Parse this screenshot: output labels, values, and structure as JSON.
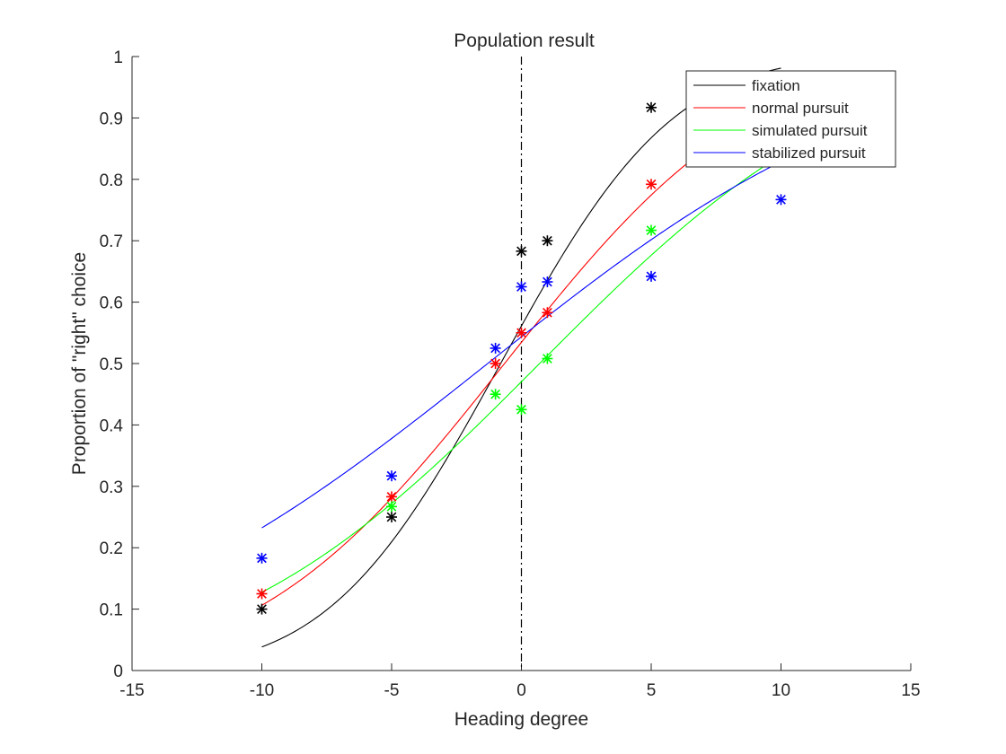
{
  "chart_data": {
    "type": "line",
    "title": "Population result",
    "xlabel": "Heading degree",
    "ylabel": "Proportion of \"right\" choice",
    "xlim": [
      -15,
      15
    ],
    "ylim": [
      0,
      1
    ],
    "xticks": [
      -15,
      -10,
      -5,
      0,
      5,
      10,
      15
    ],
    "xtick_labels": [
      "-15",
      "-10",
      "-5",
      "0",
      "5",
      "10",
      "15"
    ],
    "yticks": [
      0,
      0.1,
      0.2,
      0.3,
      0.4,
      0.5,
      0.6,
      0.7,
      0.8,
      0.9,
      1
    ],
    "ytick_labels": [
      "0",
      "0.1",
      "0.2",
      "0.3",
      "0.4",
      "0.5",
      "0.6",
      "0.7",
      "0.8",
      "0.9",
      "1"
    ],
    "grid": false,
    "legend_location": "top-right",
    "reference_line": {
      "x": 0,
      "style": "dash-dot",
      "color": "#000000"
    },
    "series": [
      {
        "name": "fixation",
        "color": "#000000",
        "points": {
          "x": [
            -10,
            -5,
            0,
            1,
            5
          ],
          "y": [
            0.1,
            0.25,
            0.683,
            0.7,
            0.917
          ]
        },
        "fit": {
          "mu": -0.8,
          "sigma": 5.2,
          "x_range": [
            -10,
            10
          ]
        }
      },
      {
        "name": "normal pursuit",
        "color": "#ff0000",
        "points": {
          "x": [
            -10,
            -5,
            -1,
            0,
            1,
            5
          ],
          "y": [
            0.125,
            0.283,
            0.5,
            0.55,
            0.583,
            0.792
          ]
        },
        "fit": {
          "mu": -0.65,
          "sigma": 7.5,
          "x_range": [
            -10,
            10
          ]
        }
      },
      {
        "name": "simulated pursuit",
        "color": "#00ff00",
        "points": {
          "x": [
            -5,
            -1,
            0,
            1,
            5
          ],
          "y": [
            0.267,
            0.45,
            0.425,
            0.508,
            0.717
          ]
        },
        "fit": {
          "mu": 0.7,
          "sigma": 9.4,
          "x_range": [
            -10,
            10
          ]
        }
      },
      {
        "name": "stabilized pursuit",
        "color": "#0000ff",
        "points": {
          "x": [
            -10,
            -5,
            -1,
            0,
            1,
            5,
            10
          ],
          "y": [
            0.183,
            0.317,
            0.525,
            0.625,
            0.633,
            0.642,
            0.767
          ]
        },
        "fit": {
          "mu": -1.3,
          "sigma": 11.9,
          "x_range": [
            -10,
            10
          ]
        }
      }
    ]
  }
}
